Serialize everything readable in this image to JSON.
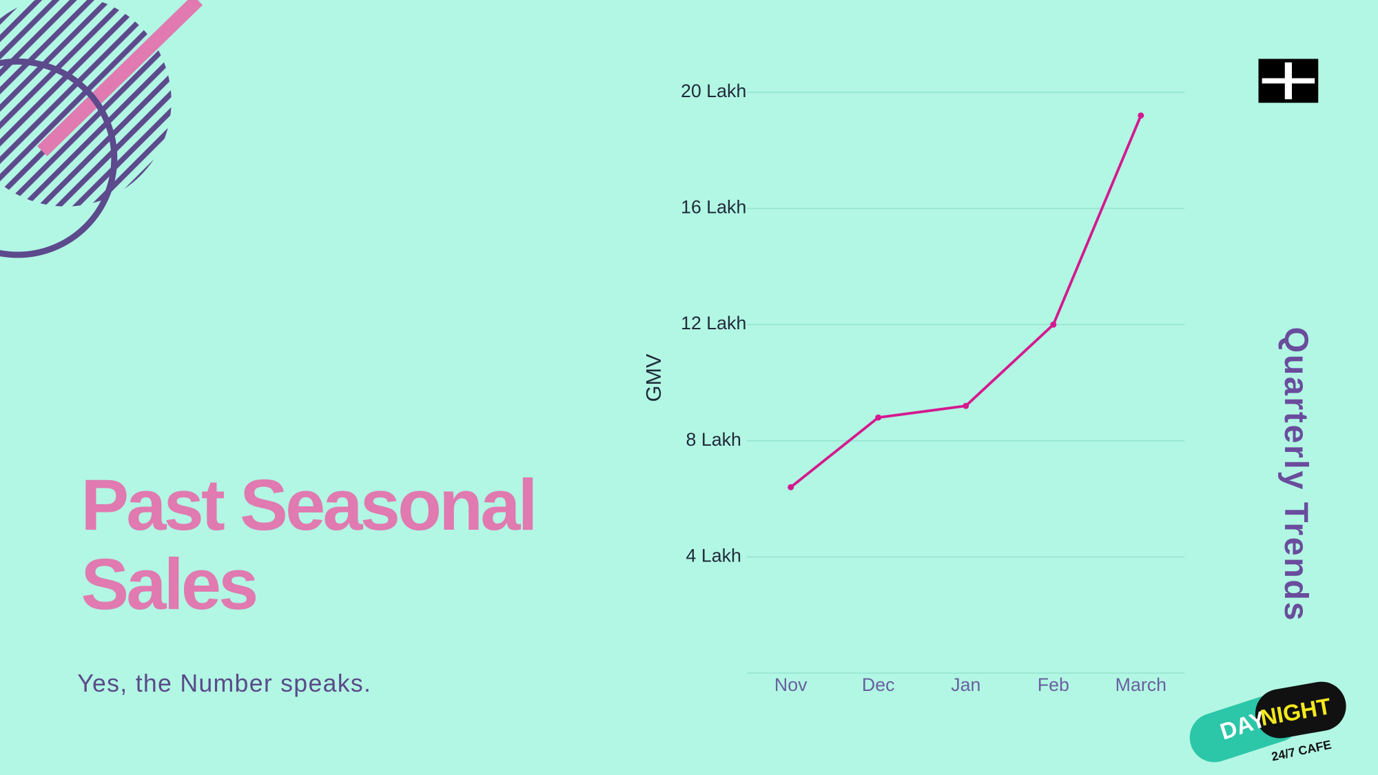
{
  "slide": {
    "title": [
      "Past Seasonal",
      "Sales"
    ],
    "subtitle": "Yes, the Number speaks.",
    "side_title": "Quarterly Trends",
    "logo": {
      "day": "DAY",
      "night": "NIGHT",
      "tagline": "24/7 CAFE"
    }
  },
  "chart_data": {
    "type": "line",
    "y_label": "GMV",
    "categories": [
      "Nov",
      "Dec",
      "Jan",
      "Feb",
      "March"
    ],
    "values": [
      6.4,
      8.8,
      9.2,
      12.0,
      19.2
    ],
    "color": "#d4198f",
    "ylim": [
      0,
      20
    ],
    "yticks": [
      {
        "value": 4,
        "label": "4 Lakh"
      },
      {
        "value": 8,
        "label": "8 Lakh"
      },
      {
        "value": 12,
        "label": "12 Lakh"
      },
      {
        "value": 16,
        "label": "16 Lakh"
      },
      {
        "value": 20,
        "label": "20 Lakh"
      }
    ],
    "grid": true
  }
}
